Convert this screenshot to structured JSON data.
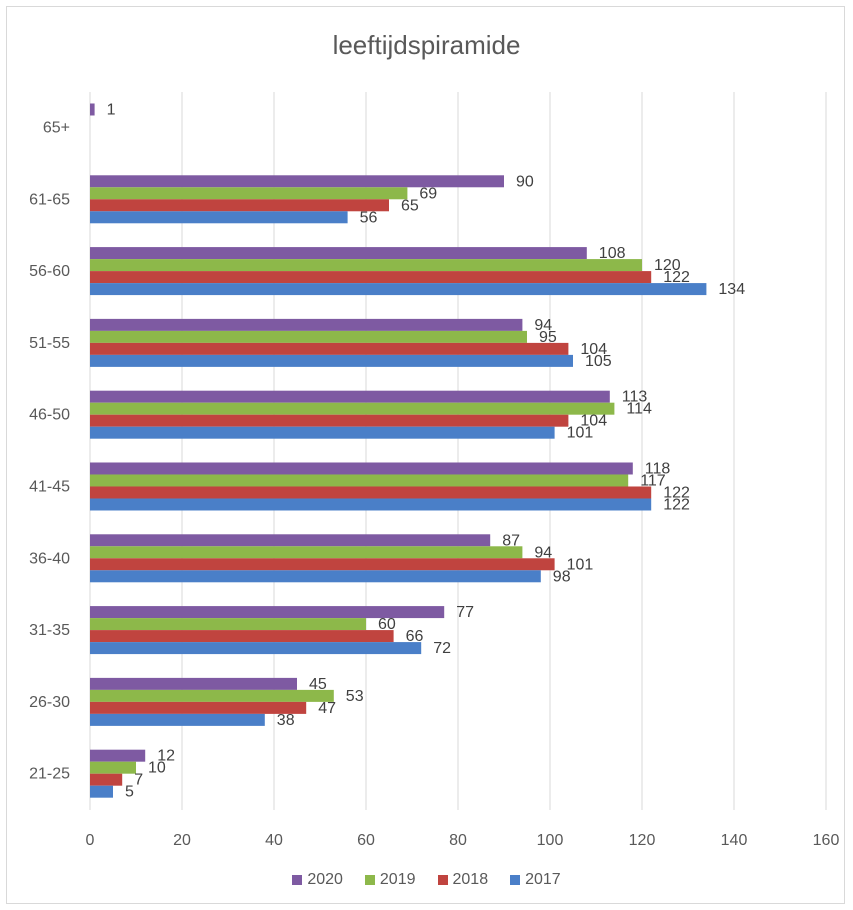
{
  "chart_data": {
    "type": "bar",
    "orientation": "horizontal",
    "title": "leeftijdspiramide",
    "categories": [
      "21-25",
      "26-30",
      "31-35",
      "36-40",
      "41-45",
      "46-50",
      "51-55",
      "56-60",
      "61-65",
      "65+"
    ],
    "series": [
      {
        "name": "2020",
        "color": "#7E5AA2",
        "values": [
          12,
          45,
          77,
          87,
          118,
          113,
          94,
          108,
          90,
          1
        ]
      },
      {
        "name": "2019",
        "color": "#8DB84A",
        "values": [
          10,
          53,
          60,
          94,
          117,
          114,
          95,
          120,
          69,
          null
        ]
      },
      {
        "name": "2018",
        "color": "#C0443F",
        "values": [
          7,
          47,
          66,
          101,
          122,
          104,
          104,
          122,
          65,
          null
        ]
      },
      {
        "name": "2017",
        "color": "#4A7FC8",
        "values": [
          5,
          38,
          72,
          98,
          122,
          101,
          105,
          134,
          56,
          null
        ]
      }
    ],
    "xlim": [
      0,
      160
    ],
    "xticks": [
      0,
      20,
      40,
      60,
      80,
      100,
      120,
      140,
      160
    ],
    "grid": true,
    "legend_position": "bottom"
  }
}
